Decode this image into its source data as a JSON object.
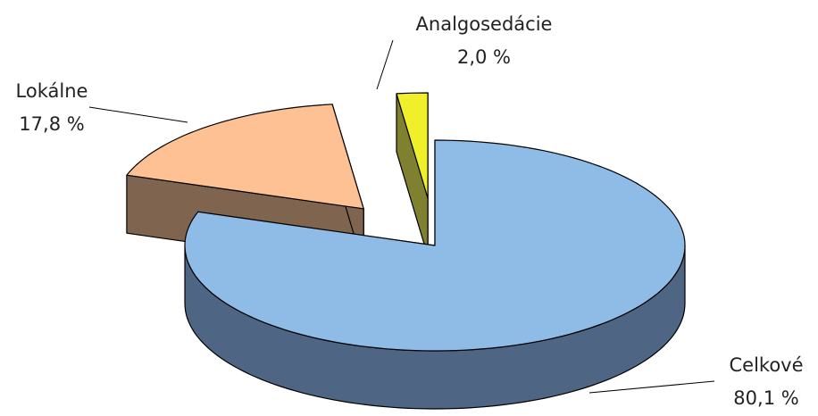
{
  "chart_data": {
    "type": "pie",
    "categories": [
      "Celkové",
      "Lokálne",
      "Analgosedácie"
    ],
    "values": [
      80.1,
      17.8,
      2.0
    ],
    "value_labels": [
      "80,1 %",
      "17,8 %",
      "2,0 %"
    ],
    "colors": [
      "#8fbce6",
      "#fdc193",
      "#f0f02a"
    ],
    "side_colors": [
      "#4e6584",
      "#7f6550",
      "#7f8030"
    ]
  }
}
